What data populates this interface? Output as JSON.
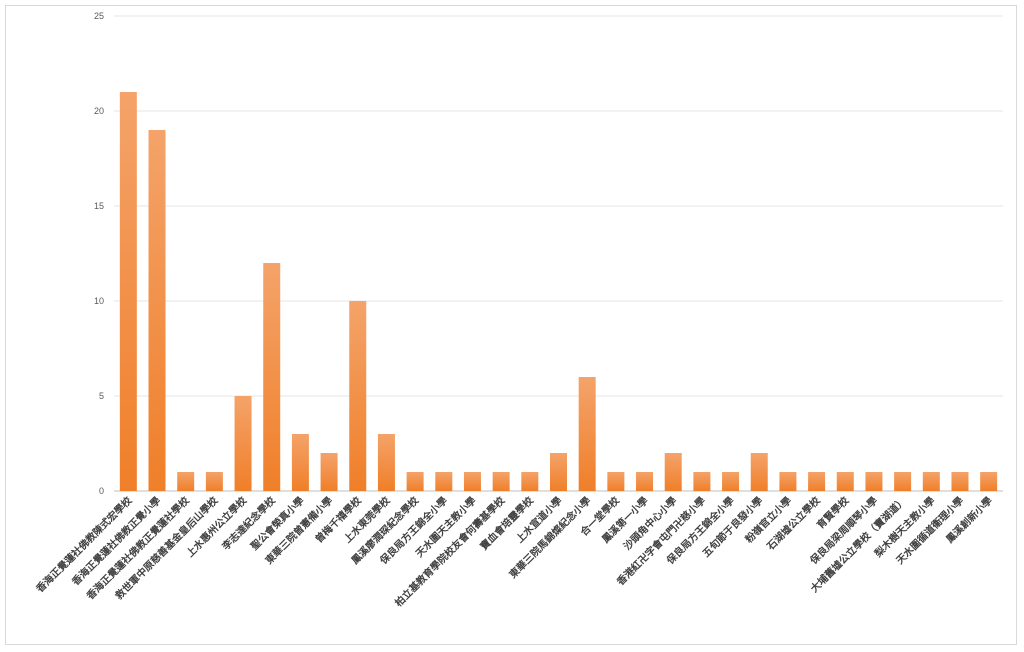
{
  "chart_data": {
    "type": "bar",
    "title": "",
    "xlabel": "",
    "ylabel": "",
    "ylim": [
      0,
      25
    ],
    "yticks": [
      0,
      5,
      10,
      15,
      20,
      25
    ],
    "grid": true,
    "bar_color": "#f07f29",
    "bar_color_light": "#f4a36a",
    "categories": [
      "香海正覺蓮社佛教陳式宏學校",
      "香海正覺蓮社佛教正覺小學",
      "香海正覺蓮社佛教正覺蓮社學校",
      "救世軍中原慈善基金皇后山學校",
      "上水惠州公立學校",
      "李志達紀念學校",
      "聖公會榮真小學",
      "東華三院曾憲備小學",
      "曾梅千禧學校",
      "上水東莞學校",
      "鳳溪廖潤琛紀念學校",
      "保良局方王錦全小學",
      "天水圍天主教小學",
      "柏立基教育學院校友會何壽基學校",
      "寶血會培靈學校",
      "上水宣道小學",
      "東華三院馬錦燦紀念小學",
      "合一堂學校",
      "鳳溪第一小學",
      "沙頭角中心小學",
      "香港紅卍字會屯門卍慈小學",
      "保良局方王錦全小學",
      "五旬節于良發小學",
      "粉嶺官立小學",
      "石湖墟公立學校",
      "育賢學校",
      "保良局梁周順琴小學",
      "大埔舊墟公立學校（寶湖道）",
      "梨木樹天主教小學",
      "天水圍循道衞理小學",
      "鳳溪創新小學"
    ],
    "values": [
      21,
      19,
      1,
      1,
      5,
      12,
      3,
      2,
      10,
      3,
      1,
      1,
      1,
      1,
      1,
      2,
      6,
      1,
      1,
      2,
      1,
      1,
      2,
      1,
      1,
      1,
      1,
      1,
      1,
      1,
      1
    ]
  }
}
